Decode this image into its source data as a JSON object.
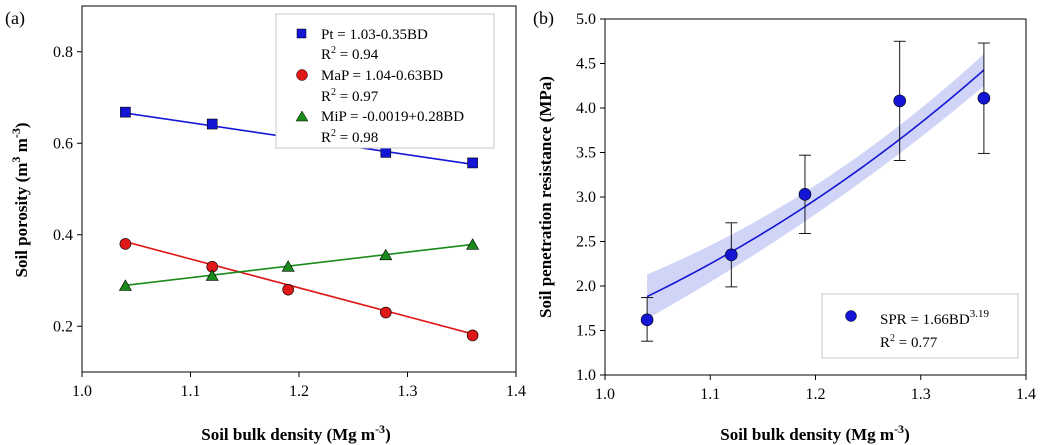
{
  "chart_data": [
    {
      "type": "scatter",
      "panel_label": "(a)",
      "xlabel": "Soil bulk density (Mg m",
      "xlabel_sup": "-3",
      "xlabel_end": ")",
      "ylabel": "Soil porosity (m",
      "ylabel_sup1": "3",
      "ylabel_mid": " m",
      "ylabel_sup2": "-3",
      "ylabel_end": ")",
      "xlim": [
        1.0,
        1.4
      ],
      "ylim": [
        0.1,
        0.9
      ],
      "xticks": [
        "1.0",
        "1.1",
        "1.2",
        "1.3",
        "1.4"
      ],
      "yticks": [
        "0.2",
        "0.4",
        "0.6",
        "0.8"
      ],
      "grid": false,
      "legend_position": "top-right",
      "series": [
        {
          "key": "pt",
          "marker": "square",
          "color": "#1515d6",
          "x": [
            1.04,
            1.12,
            1.19,
            1.28,
            1.36
          ],
          "y": [
            0.668,
            0.642,
            0.612,
            0.58,
            0.557
          ],
          "fit": {
            "intercept": 1.03,
            "slope": -0.35
          },
          "legend": "Pt = 1.03-0.35BD",
          "r2_label": "R",
          "r2_value": " = 0.94"
        },
        {
          "key": "map",
          "marker": "circle",
          "color": "#e01818",
          "x": [
            1.04,
            1.12,
            1.19,
            1.28,
            1.36
          ],
          "y": [
            0.38,
            0.33,
            0.28,
            0.23,
            0.18
          ],
          "fit": {
            "intercept": 1.04,
            "slope": -0.63
          },
          "legend": "MaP = 1.04-0.63BD",
          "r2_label": "R",
          "r2_value": " = 0.97"
        },
        {
          "key": "mip",
          "marker": "triangle",
          "color": "#1a8a1a",
          "x": [
            1.04,
            1.12,
            1.19,
            1.28,
            1.36
          ],
          "y": [
            0.288,
            0.31,
            0.33,
            0.355,
            0.378
          ],
          "fit": {
            "intercept": -0.0019,
            "slope": 0.28
          },
          "legend": "MiP = -0.0019+0.28BD",
          "r2_label": "R",
          "r2_value": " = 0.98"
        }
      ]
    },
    {
      "type": "scatter",
      "panel_label": "(b)",
      "xlabel": "Soil bulk density (Mg m",
      "xlabel_sup": "-3",
      "xlabel_end": ")",
      "ylabel": "Soil penetration resistance (MPa)",
      "xlim": [
        1.0,
        1.4
      ],
      "ylim": [
        1.0,
        5.0
      ],
      "xticks": [
        "1.0",
        "1.1",
        "1.2",
        "1.3",
        "1.4"
      ],
      "yticks": [
        "1.0",
        "1.5",
        "2.0",
        "2.5",
        "3.0",
        "3.5",
        "4.0",
        "4.5",
        "5.0"
      ],
      "grid": false,
      "legend_position": "bottom-right",
      "series": [
        {
          "key": "spr",
          "marker": "circle",
          "color": "#1515d6",
          "x": [
            1.04,
            1.12,
            1.19,
            1.28,
            1.36
          ],
          "y": [
            1.62,
            2.35,
            3.03,
            4.08,
            4.11
          ],
          "err_low": [
            1.38,
            1.99,
            2.59,
            3.41,
            3.49
          ],
          "err_high": [
            1.87,
            2.71,
            3.47,
            4.75,
            4.73
          ],
          "fit": {
            "a": 1.66,
            "b": 3.19
          },
          "band_halfwidth": [
            0.25,
            0.11,
            0.18
          ],
          "legend": "SPR = 1.66BD",
          "legend_sup": "3.19",
          "r2_label": "R",
          "r2_value": " = 0.77"
        }
      ]
    }
  ],
  "style": {
    "band_color": "#c8ccf5",
    "fit_color_b": "#1515d6"
  }
}
